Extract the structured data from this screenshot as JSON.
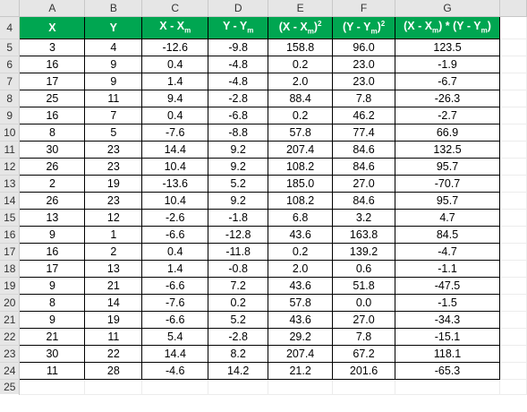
{
  "sheet": {
    "column_letters": [
      "A",
      "B",
      "C",
      "D",
      "E",
      "F",
      "G"
    ],
    "header_row_number": "4",
    "headers": [
      {
        "main": "X",
        "sub": "",
        "tail": "",
        "sup": "",
        "tail2": "",
        "sub2": "",
        "end": ""
      },
      {
        "main": "Y",
        "sub": "",
        "tail": "",
        "sup": "",
        "tail2": "",
        "sub2": "",
        "end": ""
      },
      {
        "main": "X - X",
        "sub": "m",
        "tail": "",
        "sup": "",
        "tail2": "",
        "sub2": "",
        "end": ""
      },
      {
        "main": "Y - Y",
        "sub": "m",
        "tail": "",
        "sup": "",
        "tail2": "",
        "sub2": "",
        "end": ""
      },
      {
        "main": "(X - X",
        "sub": "m",
        "tail": ")",
        "sup": "2",
        "tail2": "",
        "sub2": "",
        "end": ""
      },
      {
        "main": "(Y - Y",
        "sub": "m",
        "tail": ")",
        "sup": "2",
        "tail2": "",
        "sub2": "",
        "end": ""
      },
      {
        "main": "(X - X",
        "sub": "m",
        "tail": ") * (Y - Y",
        "sup": "",
        "tail2": "",
        "sub2": "m",
        "end": ")"
      }
    ],
    "rows": [
      {
        "num": "5",
        "cells": [
          "3",
          "4",
          "-12.6",
          "-9.8",
          "158.8",
          "96.0",
          "123.5"
        ]
      },
      {
        "num": "6",
        "cells": [
          "16",
          "9",
          "0.4",
          "-4.8",
          "0.2",
          "23.0",
          "-1.9"
        ]
      },
      {
        "num": "7",
        "cells": [
          "17",
          "9",
          "1.4",
          "-4.8",
          "2.0",
          "23.0",
          "-6.7"
        ]
      },
      {
        "num": "8",
        "cells": [
          "25",
          "11",
          "9.4",
          "-2.8",
          "88.4",
          "7.8",
          "-26.3"
        ]
      },
      {
        "num": "9",
        "cells": [
          "16",
          "7",
          "0.4",
          "-6.8",
          "0.2",
          "46.2",
          "-2.7"
        ]
      },
      {
        "num": "10",
        "cells": [
          "8",
          "5",
          "-7.6",
          "-8.8",
          "57.8",
          "77.4",
          "66.9"
        ]
      },
      {
        "num": "11",
        "cells": [
          "30",
          "23",
          "14.4",
          "9.2",
          "207.4",
          "84.6",
          "132.5"
        ]
      },
      {
        "num": "12",
        "cells": [
          "26",
          "23",
          "10.4",
          "9.2",
          "108.2",
          "84.6",
          "95.7"
        ]
      },
      {
        "num": "13",
        "cells": [
          "2",
          "19",
          "-13.6",
          "5.2",
          "185.0",
          "27.0",
          "-70.7"
        ]
      },
      {
        "num": "14",
        "cells": [
          "26",
          "23",
          "10.4",
          "9.2",
          "108.2",
          "84.6",
          "95.7"
        ]
      },
      {
        "num": "15",
        "cells": [
          "13",
          "12",
          "-2.6",
          "-1.8",
          "6.8",
          "3.2",
          "4.7"
        ]
      },
      {
        "num": "16",
        "cells": [
          "9",
          "1",
          "-6.6",
          "-12.8",
          "43.6",
          "163.8",
          "84.5"
        ]
      },
      {
        "num": "17",
        "cells": [
          "16",
          "2",
          "0.4",
          "-11.8",
          "0.2",
          "139.2",
          "-4.7"
        ]
      },
      {
        "num": "18",
        "cells": [
          "17",
          "13",
          "1.4",
          "-0.8",
          "2.0",
          "0.6",
          "-1.1"
        ]
      },
      {
        "num": "19",
        "cells": [
          "9",
          "21",
          "-6.6",
          "7.2",
          "43.6",
          "51.8",
          "-47.5"
        ]
      },
      {
        "num": "20",
        "cells": [
          "8",
          "14",
          "-7.6",
          "0.2",
          "57.8",
          "0.0",
          "-1.5"
        ]
      },
      {
        "num": "21",
        "cells": [
          "9",
          "19",
          "-6.6",
          "5.2",
          "43.6",
          "27.0",
          "-34.3"
        ]
      },
      {
        "num": "22",
        "cells": [
          "21",
          "11",
          "5.4",
          "-2.8",
          "29.2",
          "7.8",
          "-15.1"
        ]
      },
      {
        "num": "23",
        "cells": [
          "30",
          "22",
          "14.4",
          "8.2",
          "207.4",
          "67.2",
          "118.1"
        ]
      },
      {
        "num": "24",
        "cells": [
          "11",
          "28",
          "-4.6",
          "14.2",
          "21.2",
          "201.6",
          "-65.3"
        ]
      }
    ],
    "trailing_row_number": "25",
    "colors": {
      "header_fill": "#00a651",
      "header_text": "#ffffff",
      "gridline_bg": "#e6e6e6"
    }
  }
}
